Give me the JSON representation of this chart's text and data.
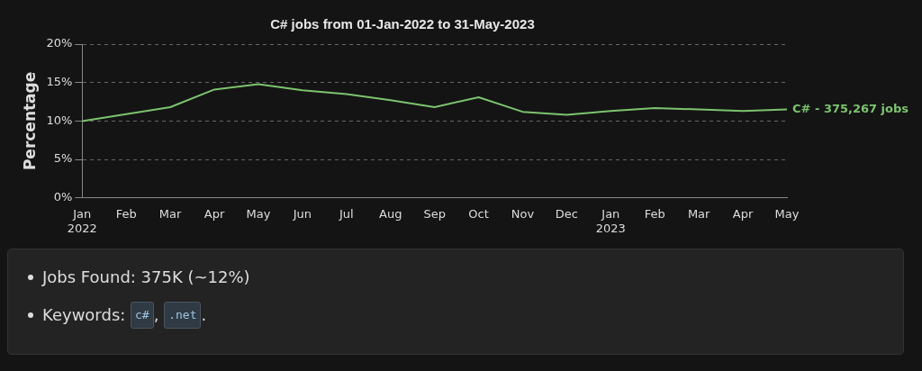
{
  "chart_data": [
    {
      "type": "line",
      "title": "C# jobs from 01-Jan-2022 to 31-May-2023",
      "ylabel": "Percentage",
      "categories": [
        "Jan\n2022",
        "Feb",
        "Mar",
        "Apr",
        "May",
        "Jun",
        "Jul",
        "Aug",
        "Sep",
        "Oct",
        "Nov",
        "Dec",
        "Jan\n2023",
        "Feb",
        "Mar",
        "Apr",
        "May"
      ],
      "series": [
        {
          "name": "C# - 375,267 jobs",
          "color": "#7cc36e",
          "values": [
            10,
            10.9,
            11.8,
            14.1,
            14.8,
            14,
            13.5,
            12.7,
            11.8,
            13.1,
            11.2,
            10.8,
            11.3,
            11.7,
            11.5,
            11.3,
            11.5
          ]
        }
      ],
      "ylim": [
        0,
        20
      ],
      "yticks": [
        {
          "value": 0,
          "label": "0%"
        },
        {
          "value": 5,
          "label": "5%"
        },
        {
          "value": 10,
          "label": "10%"
        },
        {
          "value": 15,
          "label": "15%"
        },
        {
          "value": 20,
          "label": "20%"
        }
      ],
      "grid": "y",
      "line_style": "solid",
      "marker": "none",
      "legend": false
    },
    {
      "type": "other",
      "annotations": [
        "Jobs Found: 375K (~12%)",
        "Keywords: ",
        "c#",
        ", ",
        ".net",
        "."
      ]
    }
  ]
}
